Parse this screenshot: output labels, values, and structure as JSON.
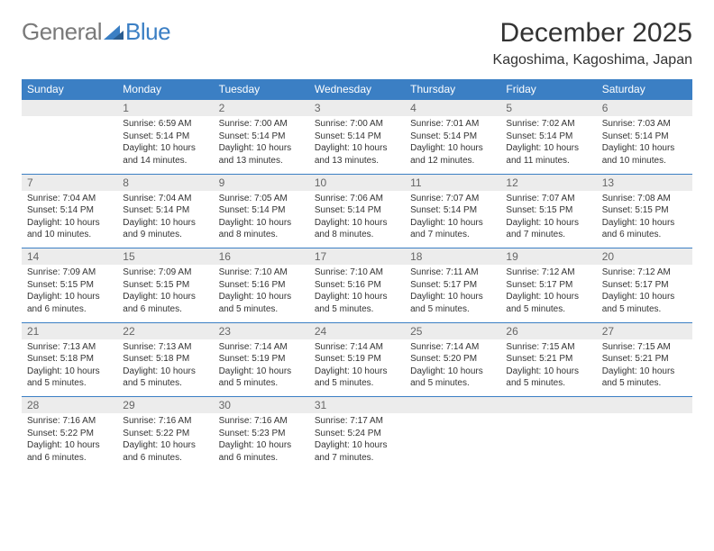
{
  "logo": {
    "text1": "General",
    "text2": "Blue"
  },
  "title": "December 2025",
  "location": "Kagoshima, Kagoshima, Japan",
  "colors": {
    "header_bg": "#3b7fc4",
    "daynum_bg": "#ececec",
    "text": "#333333",
    "logo_gray": "#7a7a7a"
  },
  "weekdays": [
    "Sunday",
    "Monday",
    "Tuesday",
    "Wednesday",
    "Thursday",
    "Friday",
    "Saturday"
  ],
  "weeks": [
    {
      "nums": [
        "",
        "1",
        "2",
        "3",
        "4",
        "5",
        "6"
      ],
      "cells": [
        {
          "empty": true
        },
        {
          "sunrise": "Sunrise: 6:59 AM",
          "sunset": "Sunset: 5:14 PM",
          "daylight": "Daylight: 10 hours and 14 minutes."
        },
        {
          "sunrise": "Sunrise: 7:00 AM",
          "sunset": "Sunset: 5:14 PM",
          "daylight": "Daylight: 10 hours and 13 minutes."
        },
        {
          "sunrise": "Sunrise: 7:00 AM",
          "sunset": "Sunset: 5:14 PM",
          "daylight": "Daylight: 10 hours and 13 minutes."
        },
        {
          "sunrise": "Sunrise: 7:01 AM",
          "sunset": "Sunset: 5:14 PM",
          "daylight": "Daylight: 10 hours and 12 minutes."
        },
        {
          "sunrise": "Sunrise: 7:02 AM",
          "sunset": "Sunset: 5:14 PM",
          "daylight": "Daylight: 10 hours and 11 minutes."
        },
        {
          "sunrise": "Sunrise: 7:03 AM",
          "sunset": "Sunset: 5:14 PM",
          "daylight": "Daylight: 10 hours and 10 minutes."
        }
      ]
    },
    {
      "nums": [
        "7",
        "8",
        "9",
        "10",
        "11",
        "12",
        "13"
      ],
      "cells": [
        {
          "sunrise": "Sunrise: 7:04 AM",
          "sunset": "Sunset: 5:14 PM",
          "daylight": "Daylight: 10 hours and 10 minutes."
        },
        {
          "sunrise": "Sunrise: 7:04 AM",
          "sunset": "Sunset: 5:14 PM",
          "daylight": "Daylight: 10 hours and 9 minutes."
        },
        {
          "sunrise": "Sunrise: 7:05 AM",
          "sunset": "Sunset: 5:14 PM",
          "daylight": "Daylight: 10 hours and 8 minutes."
        },
        {
          "sunrise": "Sunrise: 7:06 AM",
          "sunset": "Sunset: 5:14 PM",
          "daylight": "Daylight: 10 hours and 8 minutes."
        },
        {
          "sunrise": "Sunrise: 7:07 AM",
          "sunset": "Sunset: 5:14 PM",
          "daylight": "Daylight: 10 hours and 7 minutes."
        },
        {
          "sunrise": "Sunrise: 7:07 AM",
          "sunset": "Sunset: 5:15 PM",
          "daylight": "Daylight: 10 hours and 7 minutes."
        },
        {
          "sunrise": "Sunrise: 7:08 AM",
          "sunset": "Sunset: 5:15 PM",
          "daylight": "Daylight: 10 hours and 6 minutes."
        }
      ]
    },
    {
      "nums": [
        "14",
        "15",
        "16",
        "17",
        "18",
        "19",
        "20"
      ],
      "cells": [
        {
          "sunrise": "Sunrise: 7:09 AM",
          "sunset": "Sunset: 5:15 PM",
          "daylight": "Daylight: 10 hours and 6 minutes."
        },
        {
          "sunrise": "Sunrise: 7:09 AM",
          "sunset": "Sunset: 5:15 PM",
          "daylight": "Daylight: 10 hours and 6 minutes."
        },
        {
          "sunrise": "Sunrise: 7:10 AM",
          "sunset": "Sunset: 5:16 PM",
          "daylight": "Daylight: 10 hours and 5 minutes."
        },
        {
          "sunrise": "Sunrise: 7:10 AM",
          "sunset": "Sunset: 5:16 PM",
          "daylight": "Daylight: 10 hours and 5 minutes."
        },
        {
          "sunrise": "Sunrise: 7:11 AM",
          "sunset": "Sunset: 5:17 PM",
          "daylight": "Daylight: 10 hours and 5 minutes."
        },
        {
          "sunrise": "Sunrise: 7:12 AM",
          "sunset": "Sunset: 5:17 PM",
          "daylight": "Daylight: 10 hours and 5 minutes."
        },
        {
          "sunrise": "Sunrise: 7:12 AM",
          "sunset": "Sunset: 5:17 PM",
          "daylight": "Daylight: 10 hours and 5 minutes."
        }
      ]
    },
    {
      "nums": [
        "21",
        "22",
        "23",
        "24",
        "25",
        "26",
        "27"
      ],
      "cells": [
        {
          "sunrise": "Sunrise: 7:13 AM",
          "sunset": "Sunset: 5:18 PM",
          "daylight": "Daylight: 10 hours and 5 minutes."
        },
        {
          "sunrise": "Sunrise: 7:13 AM",
          "sunset": "Sunset: 5:18 PM",
          "daylight": "Daylight: 10 hours and 5 minutes."
        },
        {
          "sunrise": "Sunrise: 7:14 AM",
          "sunset": "Sunset: 5:19 PM",
          "daylight": "Daylight: 10 hours and 5 minutes."
        },
        {
          "sunrise": "Sunrise: 7:14 AM",
          "sunset": "Sunset: 5:19 PM",
          "daylight": "Daylight: 10 hours and 5 minutes."
        },
        {
          "sunrise": "Sunrise: 7:14 AM",
          "sunset": "Sunset: 5:20 PM",
          "daylight": "Daylight: 10 hours and 5 minutes."
        },
        {
          "sunrise": "Sunrise: 7:15 AM",
          "sunset": "Sunset: 5:21 PM",
          "daylight": "Daylight: 10 hours and 5 minutes."
        },
        {
          "sunrise": "Sunrise: 7:15 AM",
          "sunset": "Sunset: 5:21 PM",
          "daylight": "Daylight: 10 hours and 5 minutes."
        }
      ]
    },
    {
      "nums": [
        "28",
        "29",
        "30",
        "31",
        "",
        "",
        ""
      ],
      "cells": [
        {
          "sunrise": "Sunrise: 7:16 AM",
          "sunset": "Sunset: 5:22 PM",
          "daylight": "Daylight: 10 hours and 6 minutes."
        },
        {
          "sunrise": "Sunrise: 7:16 AM",
          "sunset": "Sunset: 5:22 PM",
          "daylight": "Daylight: 10 hours and 6 minutes."
        },
        {
          "sunrise": "Sunrise: 7:16 AM",
          "sunset": "Sunset: 5:23 PM",
          "daylight": "Daylight: 10 hours and 6 minutes."
        },
        {
          "sunrise": "Sunrise: 7:17 AM",
          "sunset": "Sunset: 5:24 PM",
          "daylight": "Daylight: 10 hours and 7 minutes."
        },
        {
          "empty": true
        },
        {
          "empty": true
        },
        {
          "empty": true
        }
      ]
    }
  ]
}
